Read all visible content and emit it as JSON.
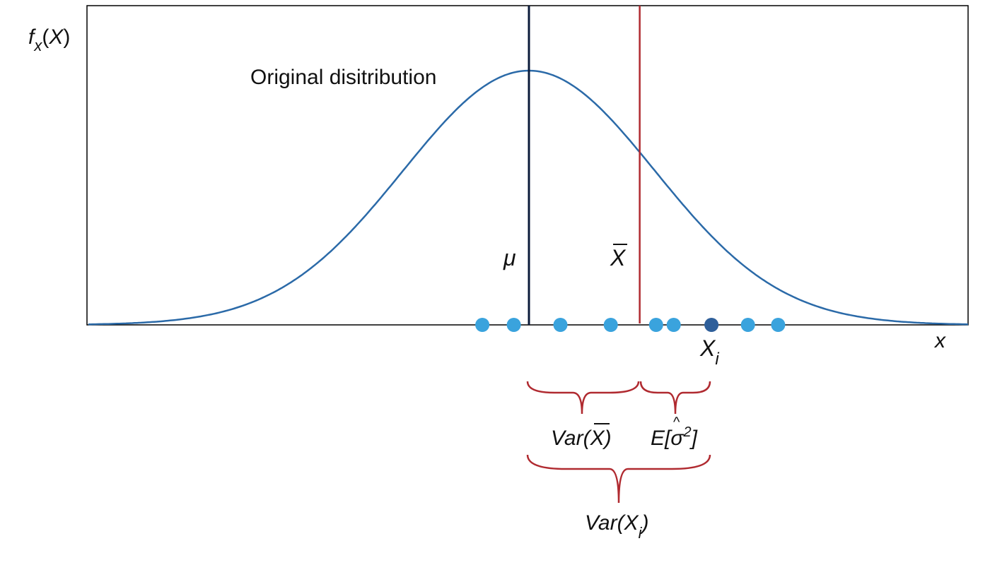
{
  "figure": {
    "y_label": {
      "f": "f",
      "sub": "x",
      "open": "(",
      "var": "X",
      "close": ")"
    },
    "x_label": "x",
    "distribution_label": "Original disitribution",
    "mu_label": "μ",
    "xbar_label": "X",
    "xi_label": {
      "base": "X",
      "sub": "i"
    },
    "var_xbar_label": {
      "pre": "Var(",
      "var": "X",
      "post": ")"
    },
    "e_sigma_label": {
      "pre": "E[",
      "sigma": "σ",
      "hat": "^",
      "sup": "2",
      "post": "]"
    },
    "var_xi_label": {
      "pre": "Var(",
      "var": "X",
      "sub": "i",
      "post": ")"
    }
  },
  "colors": {
    "curve": "#2b6aa8",
    "mean_line": "#0b1b3a",
    "sample_mean_line": "#b02a30",
    "sample_point": "#3aa3dd",
    "highlight_point": "#2f5f9a",
    "brace": "#b02a30",
    "frame": "#000000"
  },
  "diagram_data": {
    "x_range": [
      -3.5,
      3.5
    ],
    "mu": 0,
    "sigma": 1,
    "sample_mean": 0.88,
    "samples": [
      -0.37,
      -0.12,
      0.25,
      0.65,
      1.01,
      1.15,
      1.45
    ],
    "highlighted_sample": 1.45,
    "extra_samples": [
      1.74,
      1.98
    ]
  }
}
